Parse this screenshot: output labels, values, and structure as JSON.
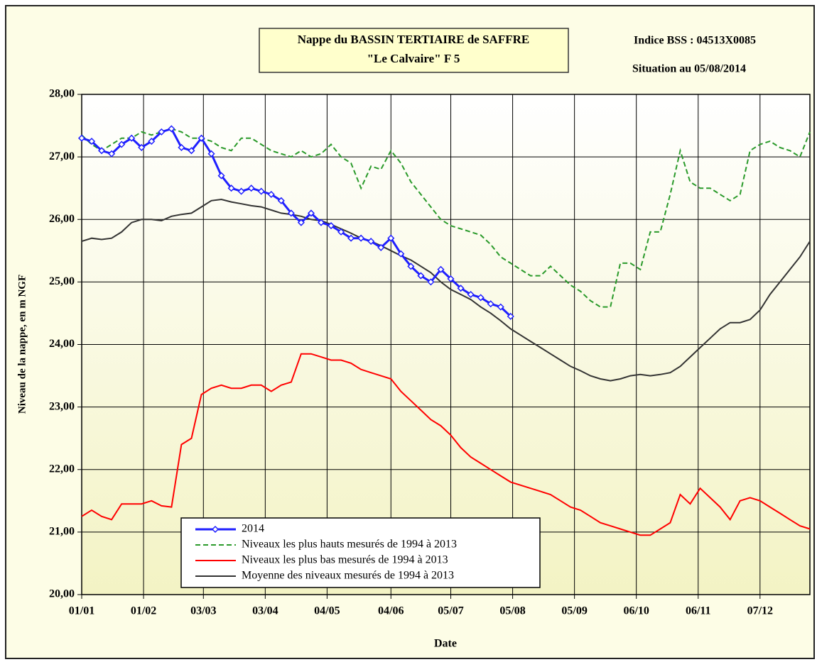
{
  "chart_data": {
    "type": "line",
    "title": "Nappe du BASSIN TERTIAIRE de SAFFRE",
    "subtitle": "\"Le Calvaire\" F 5",
    "annotations": [
      "Indice BSS : 04513X0085",
      "Situation au 05/08/2014"
    ],
    "x_label": "Date",
    "y_label": "Niveau de la nappe, en m NGF",
    "grid": true,
    "legend": "bottom-left",
    "xlim": [
      0,
      365
    ],
    "xticks": [
      {
        "value": 0,
        "label": "01/01"
      },
      {
        "value": 31,
        "label": "01/02"
      },
      {
        "value": 61,
        "label": "03/03"
      },
      {
        "value": 92,
        "label": "03/04"
      },
      {
        "value": 123,
        "label": "04/05"
      },
      {
        "value": 155,
        "label": "04/06"
      },
      {
        "value": 185,
        "label": "05/07"
      },
      {
        "value": 216,
        "label": "05/08"
      },
      {
        "value": 247,
        "label": "05/09"
      },
      {
        "value": 278,
        "label": "06/10"
      },
      {
        "value": 309,
        "label": "06/11"
      },
      {
        "value": 340,
        "label": "07/12"
      }
    ],
    "ylim": [
      20,
      28
    ],
    "yticks": [
      {
        "value": 20,
        "label": "20,00"
      },
      {
        "value": 21,
        "label": "21,00"
      },
      {
        "value": 22,
        "label": "22,00"
      },
      {
        "value": 23,
        "label": "23,00"
      },
      {
        "value": 24,
        "label": "24,00"
      },
      {
        "value": 25,
        "label": "25,00"
      },
      {
        "value": 26,
        "label": "26,00"
      },
      {
        "value": 27,
        "label": "27,00"
      },
      {
        "value": 28,
        "label": "28,00"
      }
    ],
    "x": [
      0,
      5,
      10,
      15,
      20,
      25,
      30,
      35,
      40,
      45,
      50,
      55,
      60,
      65,
      70,
      75,
      80,
      85,
      90,
      95,
      100,
      105,
      110,
      115,
      120,
      125,
      130,
      135,
      140,
      145,
      150,
      155,
      160,
      165,
      170,
      175,
      180,
      185,
      190,
      195,
      200,
      205,
      210,
      215,
      220,
      225,
      230,
      235,
      240,
      245,
      250,
      255,
      260,
      265,
      270,
      275,
      280,
      285,
      290,
      295,
      300,
      305,
      310,
      315,
      320,
      325,
      330,
      335,
      340,
      345,
      350,
      355,
      360,
      365
    ],
    "series": [
      {
        "name": "2014",
        "color": "#1f1fff",
        "dash": false,
        "markers": true,
        "values": [
          27.3,
          27.25,
          27.1,
          27.05,
          27.2,
          27.3,
          27.15,
          27.25,
          27.4,
          27.45,
          27.15,
          27.1,
          27.3,
          27.05,
          26.7,
          26.5,
          26.45,
          26.5,
          26.45,
          26.4,
          26.3,
          26.1,
          25.95,
          26.1,
          25.95,
          25.9,
          25.8,
          25.7,
          25.7,
          25.65,
          25.55,
          25.7,
          25.45,
          25.25,
          25.1,
          25.0,
          25.2,
          25.05,
          24.9,
          24.8,
          24.75,
          24.65,
          24.6,
          24.45,
          null,
          null,
          null,
          null,
          null,
          null,
          null,
          null,
          null,
          null,
          null,
          null,
          null,
          null,
          null,
          null,
          null,
          null,
          null,
          null,
          null,
          null,
          null,
          null,
          null,
          null,
          null,
          null,
          null,
          null
        ]
      },
      {
        "name": "Niveaux les plus hauts mesurés de 1994 à 2013",
        "color": "#2a9a2a",
        "dash": true,
        "markers": false,
        "values": [
          27.35,
          27.2,
          27.1,
          27.2,
          27.3,
          27.3,
          27.4,
          27.35,
          27.4,
          27.45,
          27.4,
          27.3,
          27.3,
          27.25,
          27.15,
          27.1,
          27.3,
          27.3,
          27.2,
          27.1,
          27.05,
          27.0,
          27.1,
          27.0,
          27.05,
          27.2,
          27.0,
          26.9,
          26.5,
          26.85,
          26.8,
          27.1,
          26.9,
          26.6,
          26.4,
          26.2,
          26.0,
          25.9,
          25.85,
          25.8,
          25.75,
          25.6,
          25.4,
          25.3,
          25.2,
          25.1,
          25.1,
          25.25,
          25.1,
          24.95,
          24.85,
          24.7,
          24.6,
          24.6,
          25.3,
          25.3,
          25.2,
          25.8,
          25.8,
          26.4,
          27.1,
          26.6,
          26.5,
          26.5,
          26.4,
          26.3,
          26.4,
          27.1,
          27.2,
          27.25,
          27.15,
          27.1,
          27.0,
          27.4
        ]
      },
      {
        "name": "Niveaux les plus bas mesurés de 1994 à 2013",
        "color": "#ff0000",
        "dash": false,
        "markers": false,
        "values": [
          21.25,
          21.35,
          21.25,
          21.2,
          21.45,
          21.45,
          21.45,
          21.5,
          21.42,
          21.4,
          22.4,
          22.5,
          23.2,
          23.3,
          23.35,
          23.3,
          23.3,
          23.35,
          23.35,
          23.25,
          23.35,
          23.4,
          23.85,
          23.85,
          23.8,
          23.75,
          23.75,
          23.7,
          23.6,
          23.55,
          23.5,
          23.45,
          23.25,
          23.1,
          22.95,
          22.8,
          22.7,
          22.55,
          22.35,
          22.2,
          22.1,
          22.0,
          21.9,
          21.8,
          21.75,
          21.7,
          21.65,
          21.6,
          21.5,
          21.4,
          21.35,
          21.25,
          21.15,
          21.1,
          21.05,
          21.0,
          20.95,
          20.95,
          21.05,
          21.15,
          21.6,
          21.45,
          21.7,
          21.55,
          21.4,
          21.2,
          21.5,
          21.55,
          21.5,
          21.4,
          21.3,
          21.2,
          21.1,
          21.05
        ]
      },
      {
        "name": "Moyenne des niveaux mesurés de 1994 à 2013",
        "color": "#333333",
        "dash": false,
        "markers": false,
        "values": [
          25.65,
          25.7,
          25.68,
          25.7,
          25.8,
          25.95,
          26.0,
          26.0,
          25.98,
          26.05,
          26.08,
          26.1,
          26.2,
          26.3,
          26.32,
          26.28,
          26.25,
          26.22,
          26.2,
          26.15,
          26.1,
          26.08,
          26.05,
          26.0,
          25.98,
          25.92,
          25.85,
          25.78,
          25.7,
          25.65,
          25.58,
          25.5,
          25.42,
          25.35,
          25.25,
          25.15,
          25.0,
          24.88,
          24.8,
          24.72,
          24.6,
          24.5,
          24.38,
          24.25,
          24.15,
          24.05,
          23.95,
          23.85,
          23.75,
          23.65,
          23.58,
          23.5,
          23.45,
          23.42,
          23.45,
          23.5,
          23.52,
          23.5,
          23.52,
          23.55,
          23.65,
          23.8,
          23.95,
          24.1,
          24.25,
          24.35,
          24.35,
          24.4,
          24.55,
          24.8,
          25.0,
          25.2,
          25.4,
          25.65
        ]
      }
    ]
  }
}
